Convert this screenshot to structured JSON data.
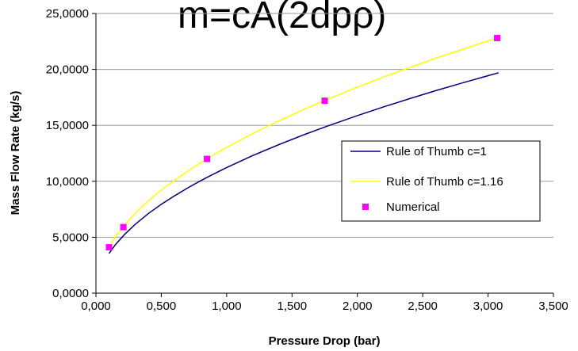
{
  "colors": {
    "grid": "#999999",
    "axis": "#000000",
    "background": "#ffffff"
  },
  "chart_data": {
    "type": "line",
    "title": "m=cA(2dpρ)",
    "xlabel": "Pressure Drop (bar)",
    "ylabel": "Mass Flow Rate (kg/s)",
    "xlim": [
      0,
      3.5
    ],
    "ylim": [
      0,
      25
    ],
    "grid": true,
    "legend_position": "right",
    "x_ticks": [
      {
        "value": 0,
        "label": "0,000"
      },
      {
        "value": 0.5,
        "label": "0,500"
      },
      {
        "value": 1.0,
        "label": "1,000"
      },
      {
        "value": 1.5,
        "label": "1,500"
      },
      {
        "value": 2.0,
        "label": "2,000"
      },
      {
        "value": 2.5,
        "label": "2,500"
      },
      {
        "value": 3.0,
        "label": "3,000"
      },
      {
        "value": 3.5,
        "label": "3,500"
      }
    ],
    "y_ticks": [
      {
        "value": 0,
        "label": "0,0000"
      },
      {
        "value": 5,
        "label": "5,0000"
      },
      {
        "value": 10,
        "label": "10,0000"
      },
      {
        "value": 15,
        "label": "15,0000"
      },
      {
        "value": 20,
        "label": "20,0000"
      },
      {
        "value": 25,
        "label": "25,0000"
      }
    ],
    "series": [
      {
        "name": "Rule of Thumb c=1",
        "type": "line",
        "color": "#000080",
        "x": [
          0.1,
          0.15,
          0.22,
          0.3,
          0.4,
          0.5,
          0.6,
          0.7,
          0.8,
          0.87,
          1.0,
          1.2,
          1.4,
          1.6,
          1.76,
          2.0,
          2.2,
          2.4,
          2.6,
          2.8,
          3.0,
          3.08
        ],
        "y": [
          3.55,
          4.35,
          5.26,
          6.15,
          7.1,
          7.94,
          8.69,
          9.39,
          10.04,
          10.47,
          11.23,
          12.3,
          13.28,
          14.2,
          14.89,
          15.87,
          16.65,
          17.39,
          18.1,
          18.78,
          19.44,
          19.7
        ]
      },
      {
        "name": "Rule of Thumb c=1.16",
        "type": "line",
        "color": "#ffff00",
        "x": [
          0.1,
          0.15,
          0.22,
          0.3,
          0.4,
          0.5,
          0.6,
          0.7,
          0.8,
          0.87,
          1.0,
          1.2,
          1.4,
          1.6,
          1.76,
          2.0,
          2.2,
          2.4,
          2.6,
          2.8,
          3.0,
          3.08
        ],
        "y": [
          4.12,
          5.05,
          6.1,
          7.13,
          8.24,
          9.21,
          10.08,
          10.89,
          11.65,
          12.15,
          13.03,
          14.27,
          15.4,
          16.47,
          17.27,
          18.41,
          19.31,
          20.17,
          21.0,
          21.78,
          22.55,
          22.85
        ]
      },
      {
        "name": "Numerical",
        "type": "scatter",
        "color": "#ff00ff",
        "x": [
          0.1,
          0.21,
          0.85,
          1.75,
          3.07
        ],
        "y": [
          4.1,
          5.9,
          12.0,
          17.2,
          22.8
        ]
      }
    ]
  }
}
